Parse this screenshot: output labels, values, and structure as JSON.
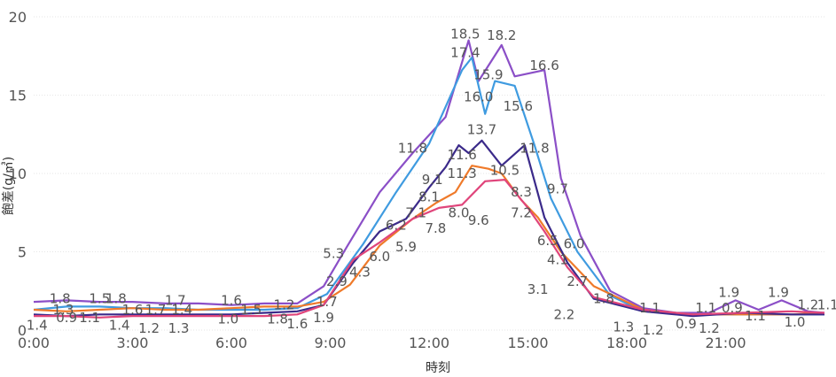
{
  "chart_data": {
    "type": "line",
    "xlabel": "時刻",
    "ylabel": "飽差(g/㎥)",
    "x_ticks": [
      "0:00",
      "3:00",
      "6:00",
      "9:00",
      "12:00",
      "15:00",
      "18:00",
      "21:00"
    ],
    "y_ticks": [
      "0",
      "5",
      "10",
      "15",
      "20"
    ],
    "xlim_hours": [
      0,
      24
    ],
    "ylim": [
      0,
      20
    ],
    "grid": true,
    "legend": "none",
    "series": [
      {
        "color": "#8b4fc7",
        "points": [
          [
            0,
            1.8
          ],
          [
            1,
            1.9
          ],
          [
            2,
            1.8
          ],
          [
            3,
            1.8
          ],
          [
            4,
            1.7
          ],
          [
            5,
            1.7
          ],
          [
            6,
            1.6
          ],
          [
            7,
            1.7
          ],
          [
            8,
            1.7
          ],
          [
            8.8,
            2.8
          ],
          [
            9.5,
            5.3
          ],
          [
            10.5,
            8.8
          ],
          [
            11.5,
            11.3
          ],
          [
            12.5,
            13.6
          ],
          [
            13.2,
            18.5
          ],
          [
            13.5,
            15.9
          ],
          [
            14.2,
            18.2
          ],
          [
            14.6,
            16.2
          ],
          [
            15.5,
            16.6
          ],
          [
            16,
            9.7
          ],
          [
            16.6,
            6.0
          ],
          [
            17.5,
            2.5
          ],
          [
            18.5,
            1.4
          ],
          [
            19.5,
            1.1
          ],
          [
            20.5,
            1.1
          ],
          [
            21.3,
            1.9
          ],
          [
            22,
            1.3
          ],
          [
            22.7,
            1.9
          ],
          [
            23.5,
            1.2
          ],
          [
            24,
            1.1
          ]
        ]
      },
      {
        "color": "#3f9be0",
        "points": [
          [
            0,
            1.3
          ],
          [
            1,
            1.5
          ],
          [
            2,
            1.5
          ],
          [
            3,
            1.4
          ],
          [
            4,
            1.4
          ],
          [
            5,
            1.3
          ],
          [
            6,
            1.3
          ],
          [
            7,
            1.3
          ],
          [
            8,
            1.4
          ],
          [
            8.9,
            2.3
          ],
          [
            10,
            5.5
          ],
          [
            11,
            8.8
          ],
          [
            12,
            11.9
          ],
          [
            13,
            16.6
          ],
          [
            13.3,
            17.4
          ],
          [
            13.7,
            13.8
          ],
          [
            14,
            15.9
          ],
          [
            14.6,
            15.6
          ],
          [
            15.2,
            11.8
          ],
          [
            15.7,
            8.4
          ],
          [
            16.5,
            5.0
          ],
          [
            17.5,
            2.2
          ],
          [
            18.5,
            1.2
          ],
          [
            20,
            1.0
          ],
          [
            21.5,
            1.0
          ],
          [
            23,
            1.0
          ],
          [
            24,
            1.0
          ]
        ]
      },
      {
        "color": "#ef7a2a",
        "points": [
          [
            0,
            1.3
          ],
          [
            1,
            1.2
          ],
          [
            2,
            1.3
          ],
          [
            3,
            1.4
          ],
          [
            4,
            1.3
          ],
          [
            5,
            1.3
          ],
          [
            6,
            1.4
          ],
          [
            7,
            1.5
          ],
          [
            8,
            1.5
          ],
          [
            8.8,
            1.8
          ],
          [
            9.6,
            2.9
          ],
          [
            10.5,
            5.4
          ],
          [
            11.5,
            7.1
          ],
          [
            12.2,
            8.1
          ],
          [
            12.8,
            8.8
          ],
          [
            13.3,
            10.5
          ],
          [
            13.8,
            10.3
          ],
          [
            14.2,
            10.0
          ],
          [
            14.8,
            8.3
          ],
          [
            15.3,
            7.2
          ],
          [
            16,
            5.0
          ],
          [
            17,
            2.8
          ],
          [
            18.5,
            1.3
          ],
          [
            20,
            1.0
          ],
          [
            21.5,
            1.0
          ],
          [
            23,
            1.0
          ],
          [
            24,
            1.1
          ]
        ]
      },
      {
        "color": "#3b2a8a",
        "points": [
          [
            0,
            1.0
          ],
          [
            1,
            0.9
          ],
          [
            2,
            1.0
          ],
          [
            3,
            1.0
          ],
          [
            4,
            1.0
          ],
          [
            5,
            1.0
          ],
          [
            6,
            1.0
          ],
          [
            7,
            1.1
          ],
          [
            8,
            1.2
          ],
          [
            8.8,
            1.6
          ],
          [
            9.7,
            4.3
          ],
          [
            10.5,
            6.3
          ],
          [
            11.3,
            7.1
          ],
          [
            12,
            9.1
          ],
          [
            12.5,
            10.4
          ],
          [
            12.9,
            11.8
          ],
          [
            13.2,
            11.3
          ],
          [
            13.6,
            12.1
          ],
          [
            14.2,
            10.5
          ],
          [
            14.9,
            11.8
          ],
          [
            15.5,
            7.2
          ],
          [
            16.2,
            4.3
          ],
          [
            17,
            2.0
          ],
          [
            18.5,
            1.2
          ],
          [
            20,
            0.9
          ],
          [
            21.5,
            1.1
          ],
          [
            23,
            1.0
          ],
          [
            24,
            1.0
          ]
        ]
      },
      {
        "color": "#e0457b",
        "points": [
          [
            0,
            0.9
          ],
          [
            1,
            0.9
          ],
          [
            2,
            0.8
          ],
          [
            3,
            0.9
          ],
          [
            4,
            0.9
          ],
          [
            5,
            0.9
          ],
          [
            6,
            0.9
          ],
          [
            7,
            0.9
          ],
          [
            8,
            1.0
          ],
          [
            8.8,
            1.6
          ],
          [
            9.7,
            4.5
          ],
          [
            10.5,
            5.6
          ],
          [
            11.5,
            7.1
          ],
          [
            12.3,
            7.8
          ],
          [
            13,
            8.0
          ],
          [
            13.7,
            9.5
          ],
          [
            14.3,
            9.6
          ],
          [
            15,
            7.8
          ],
          [
            15.5,
            6.3
          ],
          [
            16.2,
            4.0
          ],
          [
            17,
            2.1
          ],
          [
            18.5,
            1.3
          ],
          [
            20,
            1.0
          ],
          [
            21.5,
            1.1
          ],
          [
            23,
            1.2
          ],
          [
            24,
            1.1
          ]
        ]
      }
    ],
    "data_labels": [
      {
        "text": "1.8",
        "x": 0.8,
        "y": 2.0
      },
      {
        "text": "1.5",
        "x": 2.0,
        "y": 2.0
      },
      {
        "text": "1.8",
        "x": 2.5,
        "y": 2.0
      },
      {
        "text": "1.7",
        "x": 4.3,
        "y": 1.9
      },
      {
        "text": "1.6",
        "x": 6.0,
        "y": 1.9
      },
      {
        "text": "1.3",
        "x": 0.9,
        "y": 1.3
      },
      {
        "text": "1.6",
        "x": 3.0,
        "y": 1.3
      },
      {
        "text": "1.7",
        "x": 3.7,
        "y": 1.3
      },
      {
        "text": "1.4",
        "x": 4.5,
        "y": 1.3
      },
      {
        "text": "1.5",
        "x": 6.6,
        "y": 1.3
      },
      {
        "text": "1.2",
        "x": 7.6,
        "y": 1.6
      },
      {
        "text": "1.7",
        "x": 8.9,
        "y": 1.8
      },
      {
        "text": "1.4",
        "x": 0.1,
        "y": 0.3
      },
      {
        "text": "0.9",
        "x": 1.0,
        "y": 0.8
      },
      {
        "text": "1.1",
        "x": 1.7,
        "y": 0.8
      },
      {
        "text": "1.4",
        "x": 2.6,
        "y": 0.3
      },
      {
        "text": "1.2",
        "x": 3.5,
        "y": 0.1
      },
      {
        "text": "1.3",
        "x": 4.4,
        "y": 0.1
      },
      {
        "text": "1.0",
        "x": 5.9,
        "y": 0.7
      },
      {
        "text": "1.8",
        "x": 7.4,
        "y": 0.7
      },
      {
        "text": "1.6",
        "x": 8.0,
        "y": 0.4
      },
      {
        "text": "1.9",
        "x": 8.8,
        "y": 0.8
      },
      {
        "text": "2.9",
        "x": 9.2,
        "y": 3.1
      },
      {
        "text": "5.3",
        "x": 9.1,
        "y": 4.9
      },
      {
        "text": "4.3",
        "x": 9.9,
        "y": 3.7
      },
      {
        "text": "6.0",
        "x": 10.5,
        "y": 4.7
      },
      {
        "text": "6.2",
        "x": 11.0,
        "y": 6.7
      },
      {
        "text": "5.9",
        "x": 11.3,
        "y": 5.3
      },
      {
        "text": "7.1",
        "x": 11.6,
        "y": 7.5
      },
      {
        "text": "7.8",
        "x": 12.2,
        "y": 6.5
      },
      {
        "text": "8.1",
        "x": 12.0,
        "y": 8.5
      },
      {
        "text": "9.1",
        "x": 12.1,
        "y": 9.6
      },
      {
        "text": "8.0",
        "x": 12.9,
        "y": 7.5
      },
      {
        "text": "11.8",
        "x": 11.5,
        "y": 11.6
      },
      {
        "text": "11.6",
        "x": 13.0,
        "y": 11.2
      },
      {
        "text": "11.3",
        "x": 13.0,
        "y": 10.0
      },
      {
        "text": "13.7",
        "x": 13.6,
        "y": 12.8
      },
      {
        "text": "9.6",
        "x": 13.5,
        "y": 7.0
      },
      {
        "text": "18.5",
        "x": 13.1,
        "y": 18.9
      },
      {
        "text": "17.4",
        "x": 13.1,
        "y": 17.7
      },
      {
        "text": "18.2",
        "x": 14.2,
        "y": 18.8
      },
      {
        "text": "15.9",
        "x": 13.8,
        "y": 16.3
      },
      {
        "text": "16.0",
        "x": 13.5,
        "y": 14.9
      },
      {
        "text": "15.6",
        "x": 14.7,
        "y": 14.3
      },
      {
        "text": "16.6",
        "x": 15.5,
        "y": 16.9
      },
      {
        "text": "11.8",
        "x": 15.2,
        "y": 11.6
      },
      {
        "text": "10.5",
        "x": 14.3,
        "y": 10.2
      },
      {
        "text": "9.7",
        "x": 15.9,
        "y": 9.0
      },
      {
        "text": "8.3",
        "x": 14.8,
        "y": 8.8
      },
      {
        "text": "7.2",
        "x": 14.8,
        "y": 7.5
      },
      {
        "text": "6.5",
        "x": 15.6,
        "y": 5.7
      },
      {
        "text": "6.0",
        "x": 16.4,
        "y": 5.5
      },
      {
        "text": "4.1",
        "x": 15.9,
        "y": 4.5
      },
      {
        "text": "3.1",
        "x": 15.3,
        "y": 2.6
      },
      {
        "text": "2.7",
        "x": 16.5,
        "y": 3.1
      },
      {
        "text": "1.8",
        "x": 17.3,
        "y": 2.0
      },
      {
        "text": "2.2",
        "x": 16.1,
        "y": 1.0
      },
      {
        "text": "1.1",
        "x": 18.7,
        "y": 1.4
      },
      {
        "text": "1.3",
        "x": 17.9,
        "y": 0.2
      },
      {
        "text": "1.2",
        "x": 18.8,
        "y": 0.0
      },
      {
        "text": "0.9",
        "x": 19.8,
        "y": 0.4
      },
      {
        "text": "1.1",
        "x": 20.4,
        "y": 1.4
      },
      {
        "text": "0.9",
        "x": 21.2,
        "y": 1.4
      },
      {
        "text": "1.2",
        "x": 20.5,
        "y": 0.1
      },
      {
        "text": "1.9",
        "x": 21.1,
        "y": 2.4
      },
      {
        "text": "1.9",
        "x": 22.6,
        "y": 2.4
      },
      {
        "text": "1.1",
        "x": 21.9,
        "y": 0.9
      },
      {
        "text": "1.0",
        "x": 23.1,
        "y": 0.5
      },
      {
        "text": "1.2",
        "x": 23.5,
        "y": 1.6
      },
      {
        "text": "1.1",
        "x": 24.1,
        "y": 1.6
      }
    ]
  }
}
